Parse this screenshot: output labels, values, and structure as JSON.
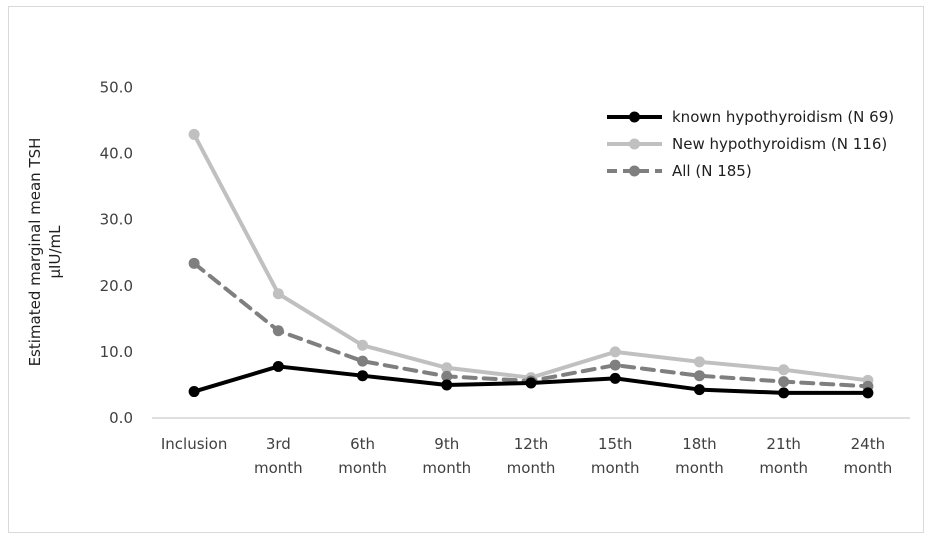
{
  "chart_data": {
    "type": "line",
    "title": "",
    "ylabel_lines": [
      "Estimated marginal mean TSH",
      "µIU/mL"
    ],
    "xlabel": "",
    "ylim": [
      0,
      50
    ],
    "yticks": [
      "0.0",
      "10.0",
      "20.0",
      "30.0",
      "40.0",
      "50.0"
    ],
    "categories": [
      [
        "Inclusion"
      ],
      [
        "3rd",
        "month"
      ],
      [
        "6th",
        "month"
      ],
      [
        "9th",
        "month"
      ],
      [
        "12th",
        "month"
      ],
      [
        "15th",
        "month"
      ],
      [
        "18th",
        "month"
      ],
      [
        "21th",
        "month"
      ],
      [
        "24th",
        "month"
      ]
    ],
    "grid": false,
    "legend_position": "top-right",
    "series": [
      {
        "name": "known hypothyroidism (N 69)",
        "values": [
          4.0,
          7.8,
          6.4,
          5.0,
          5.3,
          6.0,
          4.3,
          3.8,
          3.8
        ],
        "color": "#000000",
        "dash": "solid"
      },
      {
        "name": "New hypothyroidism (N 116)",
        "values": [
          42.9,
          18.8,
          11.0,
          7.6,
          6.1,
          10.0,
          8.5,
          7.3,
          5.7
        ],
        "color": "#c0c0c0",
        "dash": "solid"
      },
      {
        "name": "All (N 185)",
        "values": [
          23.4,
          13.2,
          8.6,
          6.3,
          5.6,
          8.0,
          6.4,
          5.5,
          4.8
        ],
        "color": "#7f7f7f",
        "dash": "dashed"
      }
    ]
  }
}
